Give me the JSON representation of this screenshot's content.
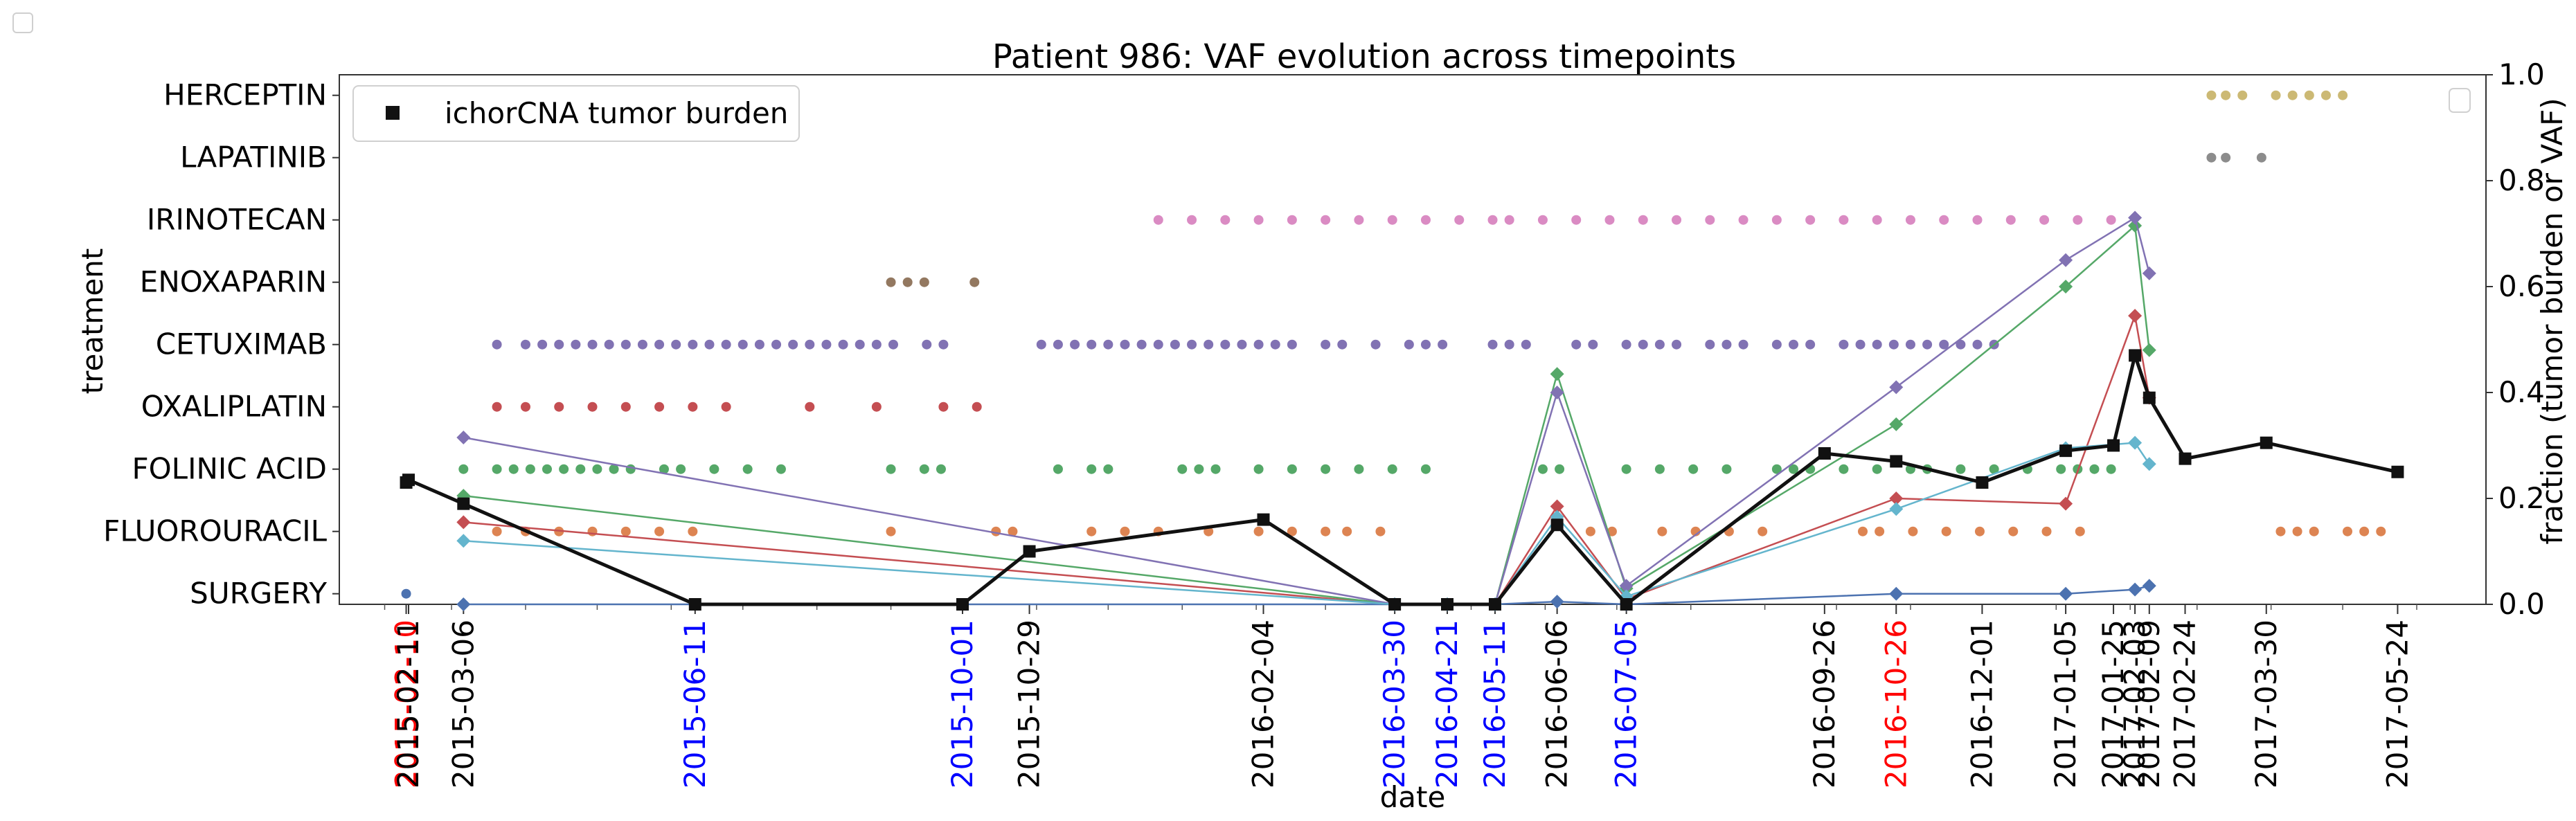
{
  "chart_data": {
    "type": "scatter",
    "title": "Patient 986: VAF evolution across timepoints",
    "xlabel": "date",
    "ylabel": "treatment",
    "y2label": "fraction (tumor burden or VAF)",
    "x_range": [
      "2015-01-13",
      "2017-06-30"
    ],
    "y2_range": [
      0.0,
      1.0
    ],
    "y2_ticks": [
      "0.0",
      "0.2",
      "0.4",
      "0.6",
      "0.8",
      "1.0"
    ],
    "legend": {
      "placement": "top-left",
      "label": "ichorCNA tumor burden"
    },
    "grid": false,
    "treatments": [
      "SURGERY",
      "FLUOROURACIL",
      "FOLINIC ACID",
      "OXALIPLATIN",
      "CETUXIMAB",
      "ENOXAPARIN",
      "IRINOTECAN",
      "LAPATINIB",
      "HERCEPTIN"
    ],
    "treatment_colors": [
      "#4C72B0",
      "#DD8452",
      "#55A868",
      "#C44E52",
      "#8172B3",
      "#937860",
      "#DA8BC3",
      "#8C8C8C",
      "#CCB974"
    ],
    "treatment_dates": [
      [
        "2015-02-10"
      ],
      [
        "2015-03-20",
        "2015-04-01",
        "2015-04-15",
        "2015-04-29",
        "2015-05-13",
        "2015-05-27",
        "2015-06-10",
        "2015-09-01",
        "2015-10-15",
        "2015-10-22",
        "2015-11-24",
        "2015-12-08",
        "2015-12-22",
        "2016-01-12",
        "2016-02-02",
        "2016-02-16",
        "2016-03-01",
        "2016-03-10",
        "2016-03-24",
        "2016-06-20",
        "2016-06-29",
        "2016-07-20",
        "2016-08-03",
        "2016-08-17",
        "2016-08-31",
        "2016-10-12",
        "2016-10-19",
        "2016-11-02",
        "2016-11-16",
        "2016-11-30",
        "2016-12-14",
        "2016-12-28",
        "2017-01-11",
        "2017-04-05",
        "2017-04-12",
        "2017-04-19",
        "2017-05-03",
        "2017-05-10",
        "2017-05-17"
      ],
      [
        "2015-03-06",
        "2015-03-20",
        "2015-03-27",
        "2015-04-03",
        "2015-04-10",
        "2015-04-17",
        "2015-04-24",
        "2015-05-01",
        "2015-05-08",
        "2015-05-15",
        "2015-05-29",
        "2015-06-05",
        "2015-06-19",
        "2015-07-03",
        "2015-07-17",
        "2015-09-01",
        "2015-09-15",
        "2015-09-22",
        "2015-11-10",
        "2015-11-24",
        "2015-12-01",
        "2016-01-01",
        "2016-01-08",
        "2016-01-15",
        "2016-02-02",
        "2016-02-16",
        "2016-03-01",
        "2016-03-15",
        "2016-03-29",
        "2016-04-12",
        "2016-05-31",
        "2016-06-07",
        "2016-07-05",
        "2016-07-19",
        "2016-08-02",
        "2016-08-16",
        "2016-09-06",
        "2016-09-13",
        "2016-09-20",
        "2016-10-04",
        "2016-10-18",
        "2016-11-01",
        "2016-11-08",
        "2016-11-22",
        "2016-12-06",
        "2016-12-20",
        "2017-01-03",
        "2017-01-10",
        "2017-01-17",
        "2017-01-24"
      ],
      [
        "2015-03-20",
        "2015-04-01",
        "2015-04-15",
        "2015-04-29",
        "2015-05-13",
        "2015-05-27",
        "2015-06-10",
        "2015-06-24",
        "2015-07-29",
        "2015-08-26",
        "2015-09-23",
        "2015-10-07"
      ],
      [
        "2015-03-20",
        "2015-04-01",
        "2015-04-08",
        "2015-04-15",
        "2015-04-22",
        "2015-04-29",
        "2015-05-06",
        "2015-05-13",
        "2015-05-20",
        "2015-05-27",
        "2015-06-03",
        "2015-06-10",
        "2015-06-17",
        "2015-06-24",
        "2015-07-01",
        "2015-07-08",
        "2015-07-15",
        "2015-07-22",
        "2015-07-29",
        "2015-08-05",
        "2015-08-12",
        "2015-08-19",
        "2015-08-26",
        "2015-09-02",
        "2015-09-16",
        "2015-09-23",
        "2015-11-03",
        "2015-11-10",
        "2015-11-17",
        "2015-11-24",
        "2015-12-01",
        "2015-12-08",
        "2015-12-15",
        "2015-12-22",
        "2015-12-29",
        "2016-01-05",
        "2016-01-12",
        "2016-01-19",
        "2016-01-26",
        "2016-02-02",
        "2016-02-09",
        "2016-02-16",
        "2016-03-01",
        "2016-03-08",
        "2016-03-22",
        "2016-04-05",
        "2016-04-12",
        "2016-04-19",
        "2016-05-10",
        "2016-05-17",
        "2016-05-24",
        "2016-06-14",
        "2016-06-21",
        "2016-07-05",
        "2016-07-12",
        "2016-07-19",
        "2016-07-26",
        "2016-08-09",
        "2016-08-16",
        "2016-08-23",
        "2016-09-06",
        "2016-09-13",
        "2016-09-20",
        "2016-10-04",
        "2016-10-11",
        "2016-10-18",
        "2016-10-25",
        "2016-11-01",
        "2016-11-08",
        "2016-11-15",
        "2016-11-22",
        "2016-11-29",
        "2016-12-06"
      ],
      [
        "2015-09-01",
        "2015-09-08",
        "2015-09-15",
        "2015-10-06"
      ],
      [
        "2015-12-22",
        "2016-01-05",
        "2016-01-19",
        "2016-02-02",
        "2016-02-16",
        "2016-03-01",
        "2016-03-15",
        "2016-03-29",
        "2016-04-12",
        "2016-04-26",
        "2016-05-10",
        "2016-05-17",
        "2016-05-31",
        "2016-06-14",
        "2016-06-28",
        "2016-07-12",
        "2016-07-26",
        "2016-08-09",
        "2016-08-23",
        "2016-09-06",
        "2016-09-20",
        "2016-10-04",
        "2016-10-18",
        "2016-11-01",
        "2016-11-15",
        "2016-11-29",
        "2016-12-13",
        "2016-12-27",
        "2017-01-10",
        "2017-01-24"
      ],
      [
        "2017-03-07",
        "2017-03-13",
        "2017-03-28"
      ],
      [
        "2017-03-07",
        "2017-03-13",
        "2017-03-20",
        "2017-04-03",
        "2017-04-10",
        "2017-04-17",
        "2017-04-24",
        "2017-05-01"
      ]
    ],
    "tumor_burden": {
      "x": [
        "2015-02-10",
        "2015-02-11",
        "2015-03-06",
        "2015-06-11",
        "2015-10-01",
        "2015-10-29",
        "2016-02-04",
        "2016-03-30",
        "2016-04-21",
        "2016-05-11",
        "2016-06-06",
        "2016-07-05",
        "2016-09-26",
        "2016-10-26",
        "2016-12-01",
        "2017-01-05",
        "2017-01-25",
        "2017-02-03",
        "2017-02-09",
        "2017-02-24",
        "2017-03-30",
        "2017-05-24"
      ],
      "y": [
        0.23,
        0.235,
        0.19,
        0.0,
        0.0,
        0.1,
        0.16,
        0.0,
        0.0,
        0.0,
        0.15,
        0.0,
        0.285,
        0.27,
        0.23,
        0.29,
        0.3,
        0.47,
        0.39,
        0.275,
        0.305,
        0.25
      ]
    },
    "vaf_series": [
      {
        "color": "#4C72B0",
        "x": [
          "2015-03-06",
          "2016-03-30",
          "2016-04-21",
          "2016-05-11",
          "2016-06-06",
          "2016-07-05",
          "2016-10-26",
          "2017-01-05",
          "2017-02-03",
          "2017-02-09"
        ],
        "y": [
          0.0,
          0.0,
          0.0,
          0.0,
          0.005,
          0.0,
          0.02,
          0.02,
          0.028,
          0.035
        ]
      },
      {
        "color": "#C44E52",
        "x": [
          "2015-03-06",
          "2016-03-30",
          "2016-04-21",
          "2016-05-11",
          "2016-06-06",
          "2016-07-05",
          "2016-10-26",
          "2017-01-05",
          "2017-02-03",
          "2017-02-09"
        ],
        "y": [
          0.155,
          0.0,
          0.0,
          0.0,
          0.185,
          0.01,
          0.2,
          0.19,
          0.545,
          0.39
        ]
      },
      {
        "color": "#55A868",
        "x": [
          "2015-03-06",
          "2016-03-30",
          "2016-04-21",
          "2016-05-11",
          "2016-06-06",
          "2016-07-05",
          "2016-10-26",
          "2017-01-05",
          "2017-02-03",
          "2017-02-09"
        ],
        "y": [
          0.205,
          0.0,
          0.0,
          0.0,
          0.435,
          0.03,
          0.34,
          0.6,
          0.715,
          0.48
        ]
      },
      {
        "color": "#8172B3",
        "x": [
          "2015-03-06",
          "2016-03-30",
          "2016-04-21",
          "2016-05-11",
          "2016-06-06",
          "2016-07-05",
          "2016-10-26",
          "2017-01-05",
          "2017-02-03",
          "2017-02-09"
        ],
        "y": [
          0.315,
          0.0,
          0.0,
          0.0,
          0.4,
          0.035,
          0.41,
          0.65,
          0.73,
          0.625
        ]
      },
      {
        "color": "#64B5CD",
        "x": [
          "2015-03-06",
          "2016-03-30",
          "2016-04-21",
          "2016-05-11",
          "2016-06-06",
          "2016-07-05",
          "2016-10-26",
          "2017-01-05",
          "2017-02-03",
          "2017-02-09"
        ],
        "y": [
          0.12,
          0.0,
          0.0,
          0.0,
          0.165,
          0.015,
          0.18,
          0.295,
          0.305,
          0.265
        ]
      }
    ],
    "date_ticks": [
      {
        "label": "2015-02-10",
        "color": "#ff0000"
      },
      {
        "label": "2015-02-11",
        "color": "#000000"
      },
      {
        "label": "2015-03-06",
        "color": "#000000"
      },
      {
        "label": "2015-06-11",
        "color": "#0000ff"
      },
      {
        "label": "2015-10-01",
        "color": "#0000ff"
      },
      {
        "label": "2015-10-29",
        "color": "#000000"
      },
      {
        "label": "2016-02-04",
        "color": "#000000"
      },
      {
        "label": "2016-03-30",
        "color": "#0000ff"
      },
      {
        "label": "2016-04-21",
        "color": "#0000ff"
      },
      {
        "label": "2016-05-11",
        "color": "#0000ff"
      },
      {
        "label": "2016-06-06",
        "color": "#000000"
      },
      {
        "label": "2016-07-05",
        "color": "#0000ff"
      },
      {
        "label": "2016-09-26",
        "color": "#000000"
      },
      {
        "label": "2016-10-26",
        "color": "#ff0000"
      },
      {
        "label": "2016-12-01",
        "color": "#000000"
      },
      {
        "label": "2017-01-05",
        "color": "#000000"
      },
      {
        "label": "2017-01-25",
        "color": "#000000"
      },
      {
        "label": "2017-02-03",
        "color": "#000000"
      },
      {
        "label": "2017-02-09",
        "color": "#000000"
      },
      {
        "label": "2017-02-24",
        "color": "#000000"
      },
      {
        "label": "2017-03-30",
        "color": "#000000"
      },
      {
        "label": "2017-05-24",
        "color": "#000000"
      }
    ]
  }
}
